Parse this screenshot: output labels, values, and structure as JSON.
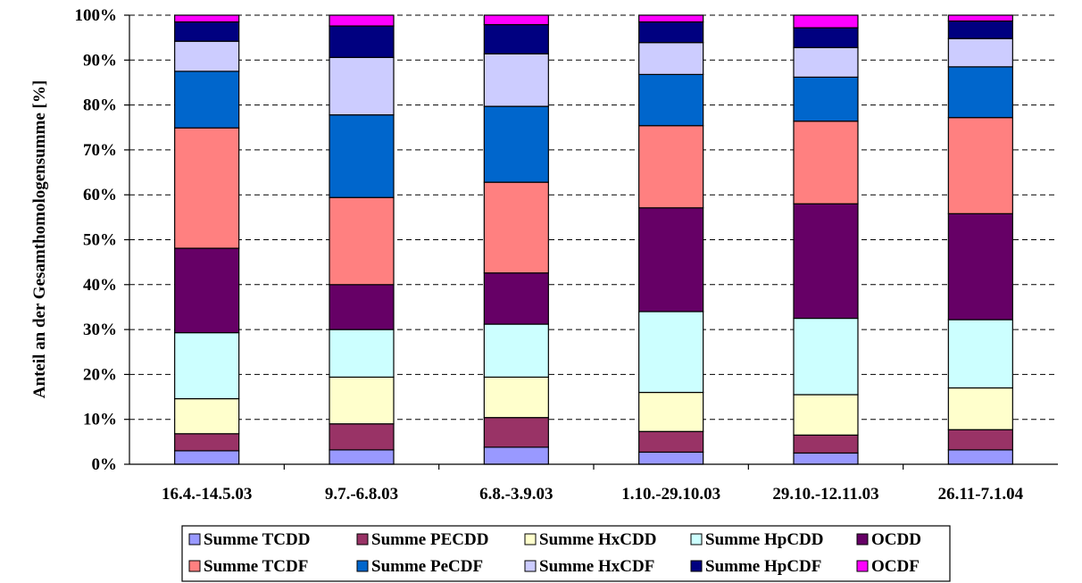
{
  "chart_data": {
    "type": "bar",
    "stacked": true,
    "normalized": true,
    "title": "",
    "xlabel": "",
    "ylabel": "Anteil an der Gesamthomologensumme [%]",
    "ylim": [
      0,
      100
    ],
    "yticks": [
      "0%",
      "10%",
      "20%",
      "30%",
      "40%",
      "50%",
      "60%",
      "70%",
      "80%",
      "90%",
      "100%"
    ],
    "grid": "horizontal-dashed",
    "legend_position": "bottom",
    "categories": [
      "16.4.-14.5.03",
      "9.7.-6.8.03",
      "6.8.-3.9.03",
      "1.10.-29.10.03",
      "29.10.-12.11.03",
      "26.11-7.1.04"
    ],
    "series": [
      {
        "name": "Summe TCDD",
        "color": "#9999ff",
        "values": [
          3.0,
          3.2,
          3.8,
          2.7,
          2.5,
          3.2
        ]
      },
      {
        "name": "Summe PECDD",
        "color": "#993366",
        "values": [
          3.8,
          5.8,
          6.6,
          4.6,
          4.0,
          4.5
        ]
      },
      {
        "name": "Summe HxCDD",
        "color": "#ffffcc",
        "values": [
          7.8,
          10.4,
          9.0,
          8.7,
          9.0,
          9.3
        ]
      },
      {
        "name": "Summe HpCDD",
        "color": "#ccffff",
        "values": [
          14.7,
          10.6,
          11.8,
          18.0,
          17.0,
          15.2
        ]
      },
      {
        "name": "OCDD",
        "color": "#660066",
        "values": [
          18.8,
          10.0,
          11.4,
          23.1,
          25.5,
          23.6
        ]
      },
      {
        "name": "Summe TCDF",
        "color": "#ff8080",
        "values": [
          26.8,
          19.4,
          20.2,
          18.3,
          18.4,
          21.4
        ]
      },
      {
        "name": "Summe PeCDF",
        "color": "#0066cc",
        "values": [
          12.6,
          18.4,
          16.9,
          11.4,
          9.8,
          11.3
        ]
      },
      {
        "name": "Summe HxCDF",
        "color": "#ccccff",
        "values": [
          6.7,
          12.8,
          11.7,
          7.1,
          6.6,
          6.3
        ]
      },
      {
        "name": "Summe HpCDF",
        "color": "#000080",
        "values": [
          4.3,
          7.0,
          6.5,
          4.6,
          4.4,
          3.9
        ]
      },
      {
        "name": "OCDF",
        "color": "#ff00ff",
        "values": [
          1.5,
          2.4,
          2.1,
          1.5,
          2.8,
          1.3
        ]
      }
    ]
  }
}
